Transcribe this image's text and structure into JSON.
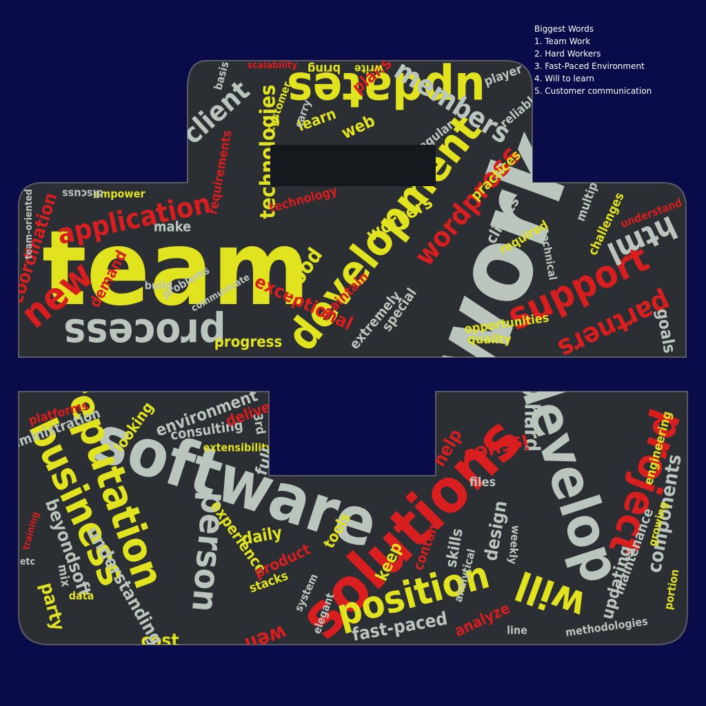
{
  "legend": {
    "title": "Biggest Words",
    "items": [
      "1. Team Work",
      "2. Hard Workers",
      "3. Fast-Paced Environment",
      "4. Will to learn",
      "5. Customer communication"
    ]
  },
  "palette": {
    "background": "#0a0c4a",
    "shape": "#2b2e33",
    "shape_border": "#5a5d63",
    "yellow": "#e1e31e",
    "red": "#d81e1e",
    "gray": "#b9c5bd",
    "slot": "#15181d"
  },
  "words": [
    {
      "text": "team",
      "color": "yellow",
      "size": 150,
      "rotate": 0
    },
    {
      "text": "work",
      "color": "gray",
      "size": 150,
      "rotate": -70
    },
    {
      "text": "development",
      "color": "yellow",
      "size": 62,
      "rotate": -52
    },
    {
      "text": "updates",
      "color": "yellow",
      "size": 70,
      "rotate": 180
    },
    {
      "text": "process",
      "color": "gray",
      "size": 60,
      "rotate": 180
    },
    {
      "text": "members",
      "color": "gray",
      "size": 40,
      "rotate": 32
    },
    {
      "text": "client",
      "color": "gray",
      "size": 40,
      "rotate": -42
    },
    {
      "text": "technologies",
      "color": "yellow",
      "size": 30,
      "rotate": -90
    },
    {
      "text": "application",
      "color": "red",
      "size": 40,
      "rotate": -12
    },
    {
      "text": "support",
      "color": "red",
      "size": 55,
      "rotate": -25
    },
    {
      "text": "wordpress",
      "color": "red",
      "size": 40,
      "rotate": -50
    },
    {
      "text": "partners",
      "color": "red",
      "size": 40,
      "rotate": 155
    },
    {
      "text": "html",
      "color": "gray",
      "size": 45,
      "rotate": 155
    },
    {
      "text": "new",
      "color": "red",
      "size": 55,
      "rotate": -40
    },
    {
      "text": "coordination",
      "color": "red",
      "size": 26,
      "rotate": -72
    },
    {
      "text": "exceptional",
      "color": "red",
      "size": 26,
      "rotate": 25
    },
    {
      "text": "good",
      "color": "yellow",
      "size": 30,
      "rotate": -55
    },
    {
      "text": "progress",
      "color": "yellow",
      "size": 22,
      "rotate": 0
    },
    {
      "text": "demand",
      "color": "red",
      "size": 22,
      "rotate": -62
    },
    {
      "text": "make",
      "color": "gray",
      "size": 20,
      "rotate": 0
    },
    {
      "text": "empower",
      "color": "yellow",
      "size": 16,
      "rotate": 0
    },
    {
      "text": "discuss",
      "color": "gray",
      "size": 16,
      "rotate": 180
    },
    {
      "text": "team-oriented",
      "color": "gray",
      "size": 14,
      "rotate": -90
    },
    {
      "text": "learn",
      "color": "yellow",
      "size": 22,
      "rotate": -20
    },
    {
      "text": "web",
      "color": "yellow",
      "size": 24,
      "rotate": -25
    },
    {
      "text": "plans",
      "color": "red",
      "size": 24,
      "rotate": -40
    },
    {
      "text": "player",
      "color": "gray",
      "size": 18,
      "rotate": -20
    },
    {
      "text": "regular",
      "color": "gray",
      "size": 18,
      "rotate": -38
    },
    {
      "text": "carry",
      "color": "gray",
      "size": 16,
      "rotate": -70
    },
    {
      "text": "customer",
      "color": "yellow",
      "size": 16,
      "rotate": -70
    },
    {
      "text": "scalability",
      "color": "red",
      "size": 14,
      "rotate": 0
    },
    {
      "text": "bring",
      "color": "yellow",
      "size": 18,
      "rotate": 180
    },
    {
      "text": "write",
      "color": "yellow",
      "size": 16,
      "rotate": 180
    },
    {
      "text": "basis",
      "color": "gray",
      "size": 16,
      "rotate": -75
    },
    {
      "text": "requirements",
      "color": "red",
      "size": 18,
      "rotate": -80
    },
    {
      "text": "technology",
      "color": "red",
      "size": 18,
      "rotate": -15
    },
    {
      "text": "workers",
      "color": "yellow",
      "size": 26,
      "rotate": -30
    },
    {
      "text": "clients",
      "color": "gray",
      "size": 22,
      "rotate": -60
    },
    {
      "text": "practices",
      "color": "yellow",
      "size": 20,
      "rotate": -45
    },
    {
      "text": "required",
      "color": "yellow",
      "size": 18,
      "rotate": -30
    },
    {
      "text": "technical",
      "color": "gray",
      "size": 16,
      "rotate": 80
    },
    {
      "text": "challenges",
      "color": "yellow",
      "size": 18,
      "rotate": -65
    },
    {
      "text": "multiple",
      "color": "gray",
      "size": 18,
      "rotate": -70
    },
    {
      "text": "understand",
      "color": "red",
      "size": 16,
      "rotate": -20
    },
    {
      "text": "opportunities",
      "color": "yellow",
      "size": 18,
      "rotate": -8
    },
    {
      "text": "quality",
      "color": "yellow",
      "size": 18,
      "rotate": 0
    },
    {
      "text": "goals",
      "color": "gray",
      "size": 24,
      "rotate": 80
    },
    {
      "text": "maintain",
      "color": "red",
      "size": 20,
      "rotate": -45
    },
    {
      "text": "special",
      "color": "gray",
      "size": 20,
      "rotate": -55
    },
    {
      "text": "extremely",
      "color": "gray",
      "size": 20,
      "rotate": -50
    },
    {
      "text": "build",
      "color": "gray",
      "size": 16,
      "rotate": 0
    },
    {
      "text": "problems",
      "color": "gray",
      "size": 16,
      "rotate": -30
    },
    {
      "text": "communicate",
      "color": "gray",
      "size": 14,
      "rotate": -30
    },
    {
      "text": "reliable",
      "color": "gray",
      "size": 18,
      "rotate": -40
    },
    {
      "text": "software",
      "color": "gray",
      "size": 95,
      "rotate": 18
    },
    {
      "text": "solutions",
      "color": "red",
      "size": 88,
      "rotate": -45
    },
    {
      "text": "develop",
      "color": "gray",
      "size": 80,
      "rotate": 72
    },
    {
      "text": "reputation",
      "color": "yellow",
      "size": 60,
      "rotate": 70
    },
    {
      "text": "business",
      "color": "yellow",
      "size": 58,
      "rotate": 65
    },
    {
      "text": "project",
      "color": "red",
      "size": 60,
      "rotate": 110
    },
    {
      "text": "will",
      "color": "yellow",
      "size": 58,
      "rotate": 200
    },
    {
      "text": "position",
      "color": "yellow",
      "size": 55,
      "rotate": -15
    },
    {
      "text": "person",
      "color": "gray",
      "size": 50,
      "rotate": 95
    },
    {
      "text": "components",
      "color": "gray",
      "size": 28,
      "rotate": -80
    },
    {
      "text": "hard",
      "color": "gray",
      "size": 30,
      "rotate": 90
    },
    {
      "text": "issues",
      "color": "red",
      "size": 30,
      "rotate": 165
    },
    {
      "text": "help",
      "color": "red",
      "size": 26,
      "rotate": -60
    },
    {
      "text": "environment",
      "color": "gray",
      "size": 24,
      "rotate": -20
    },
    {
      "text": "looking",
      "color": "yellow",
      "size": 22,
      "rotate": -55
    },
    {
      "text": "consulting",
      "color": "gray",
      "size": 20,
      "rotate": -8
    },
    {
      "text": "deliver",
      "color": "red",
      "size": 22,
      "rotate": -20
    },
    {
      "text": "extensibility",
      "color": "yellow",
      "size": 16,
      "rotate": 0
    },
    {
      "text": "full",
      "color": "gray",
      "size": 24,
      "rotate": -72
    },
    {
      "text": "3rd",
      "color": "gray",
      "size": 18,
      "rotate": 80
    },
    {
      "text": "experience",
      "color": "yellow",
      "size": 22,
      "rotate": 55
    },
    {
      "text": "daily",
      "color": "yellow",
      "size": 24,
      "rotate": -10
    },
    {
      "text": "product",
      "color": "red",
      "size": 22,
      "rotate": -25
    },
    {
      "text": "tools",
      "color": "yellow",
      "size": 22,
      "rotate": -60
    },
    {
      "text": "design",
      "color": "gray",
      "size": 26,
      "rotate": -80
    },
    {
      "text": "skills",
      "color": "gray",
      "size": 22,
      "rotate": -80
    },
    {
      "text": "keep",
      "color": "yellow",
      "size": 24,
      "rotate": -65
    },
    {
      "text": "content",
      "color": "red",
      "size": 20,
      "rotate": -70
    },
    {
      "text": "analytical",
      "color": "gray",
      "size": 16,
      "rotate": -75
    },
    {
      "text": "files",
      "color": "gray",
      "size": 18,
      "rotate": 0
    },
    {
      "text": "fast-paced",
      "color": "gray",
      "size": 26,
      "rotate": -10
    },
    {
      "text": "analyze",
      "color": "red",
      "size": 22,
      "rotate": -25
    },
    {
      "text": "cost",
      "color": "yellow",
      "size": 26,
      "rotate": 0
    },
    {
      "text": "well",
      "color": "red",
      "size": 30,
      "rotate": 160
    },
    {
      "text": "understanding",
      "color": "gray",
      "size": 26,
      "rotate": 60
    },
    {
      "text": "beyondsoft",
      "color": "gray",
      "size": 26,
      "rotate": 70
    },
    {
      "text": "party",
      "color": "yellow",
      "size": 26,
      "rotate": 75
    },
    {
      "text": "mix",
      "color": "gray",
      "size": 18,
      "rotate": 80
    },
    {
      "text": "administration",
      "color": "gray",
      "size": 20,
      "rotate": -20
    },
    {
      "text": "platforms",
      "color": "red",
      "size": 18,
      "rotate": -15
    },
    {
      "text": "methodologies",
      "color": "gray",
      "size": 16,
      "rotate": -8
    },
    {
      "text": "updating",
      "color": "gray",
      "size": 24,
      "rotate": -75
    },
    {
      "text": "maintenance",
      "color": "gray",
      "size": 20,
      "rotate": -70
    },
    {
      "text": "engineering",
      "color": "yellow",
      "size": 18,
      "rotate": -75
    },
    {
      "text": "growing",
      "color": "yellow",
      "size": 16,
      "rotate": -75
    },
    {
      "text": "weekly",
      "color": "gray",
      "size": 16,
      "rotate": 95
    },
    {
      "text": "stacks",
      "color": "yellow",
      "size": 18,
      "rotate": -20
    },
    {
      "text": "data",
      "color": "yellow",
      "size": 16,
      "rotate": 0
    },
    {
      "text": "system",
      "color": "gray",
      "size": 16,
      "rotate": -65
    },
    {
      "text": "elegant",
      "color": "gray",
      "size": 16,
      "rotate": -70
    },
    {
      "text": "line",
      "color": "gray",
      "size": 16,
      "rotate": 0
    },
    {
      "text": "portion",
      "color": "yellow",
      "size": 16,
      "rotate": -80
    },
    {
      "text": "etc",
      "color": "gray",
      "size": 14,
      "rotate": 0
    },
    {
      "text": "training",
      "color": "red",
      "size": 14,
      "rotate": -75
    }
  ]
}
